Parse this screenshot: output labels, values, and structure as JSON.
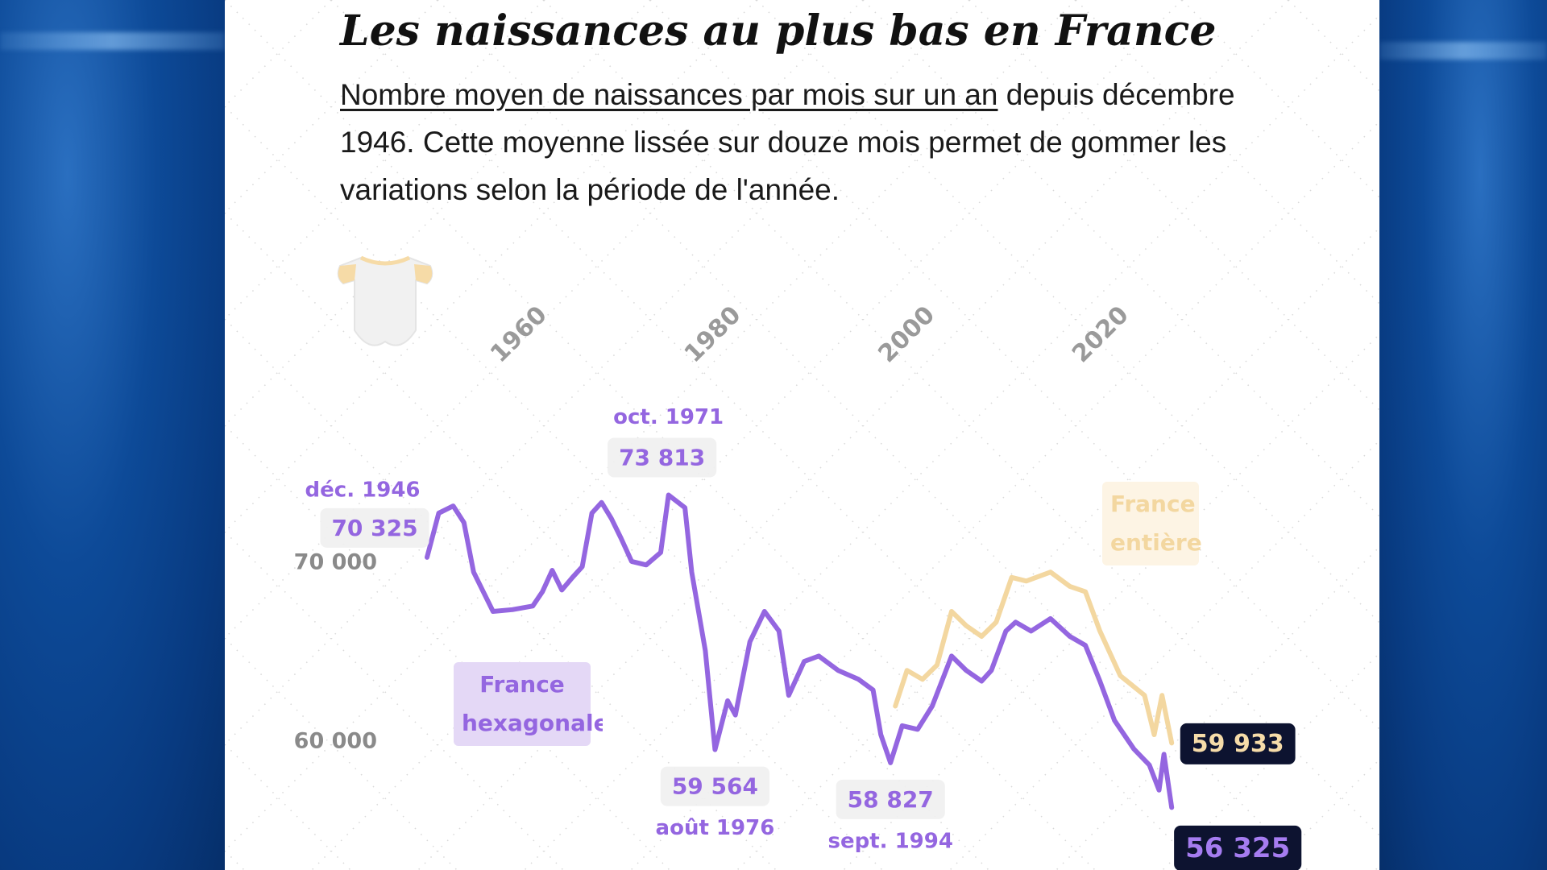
{
  "chart_data": {
    "type": "line",
    "title": "Les naissances au plus bas en France",
    "subtitle_link": "Nombre moyen de naissances par mois sur un an",
    "subtitle": "depuis décembre 1946. Cette moyenne lissée sur douze mois permet de gommer les variations selon la période de l'année.",
    "xlim": [
      1940,
      2030
    ],
    "xticks": [
      1960,
      1980,
      2000,
      2020
    ],
    "ylim": [
      54000,
      76000
    ],
    "yticks": [
      {
        "value": 60000,
        "label": "60 000"
      },
      {
        "value": 70000,
        "label": "70 000"
      }
    ],
    "series": [
      {
        "name": "France hexagonale",
        "color": "#9466e0",
        "x": [
          1946.9,
          1948.1,
          1949.6,
          1950.7,
          1951.7,
          1952.7,
          1953.7,
          1955.7,
          1957.8,
          1958.8,
          1959.8,
          1960.8,
          1961.9,
          1962.9,
          1963.9,
          1964.9,
          1965.9,
          1966.9,
          1968.0,
          1969.5,
          1971.0,
          1971.8,
          1973.5,
          1974.2,
          1975.6,
          1976.6,
          1977.9,
          1978.7,
          1980.2,
          1981.7,
          1983.2,
          1984.2,
          1985.8,
          1987.3,
          1989.3,
          1991.4,
          1992.9,
          1993.7,
          1994.7,
          1995.9,
          1997.5,
          1999.0,
          2001.0,
          2002.5,
          2004.1,
          2005.1,
          2006.6,
          2007.6,
          2009.2,
          2011.2,
          2013.2,
          2014.8,
          2016.3,
          2017.8,
          2019.8,
          2021.4,
          2022.4,
          2022.9,
          2023.7
        ],
        "values": [
          70325,
          72800,
          73200,
          72270,
          69500,
          68400,
          67300,
          67400,
          67600,
          68400,
          69600,
          68500,
          69200,
          69800,
          72800,
          73400,
          72500,
          71400,
          70100,
          69900,
          70600,
          73813,
          73100,
          69500,
          65100,
          59564,
          62300,
          61500,
          65600,
          67300,
          66200,
          62600,
          64500,
          64800,
          64000,
          63500,
          62900,
          60400,
          58827,
          60900,
          60700,
          62000,
          64800,
          64000,
          63400,
          64000,
          66200,
          66700,
          66200,
          66900,
          65900,
          65400,
          63400,
          61200,
          59600,
          58700,
          57300,
          59300,
          56325
        ]
      },
      {
        "name": "France entière",
        "color": "#f3d7a0",
        "x": [
          1995.2,
          1996.4,
          1998.0,
          1999.5,
          2001.0,
          2002.5,
          2004.1,
          2005.6,
          2007.2,
          2008.7,
          2011.2,
          2013.2,
          2014.8,
          2016.3,
          2018.4,
          2020.9,
          2021.9,
          2022.7,
          2023.7
        ],
        "values": [
          62000,
          64000,
          63500,
          64300,
          67300,
          66500,
          65900,
          66700,
          69200,
          69000,
          69500,
          68700,
          68400,
          66200,
          63700,
          62600,
          60400,
          62600,
          59933
        ]
      }
    ],
    "annotations": [
      {
        "date": "déc. 1946",
        "value": 70325,
        "label": "70 325"
      },
      {
        "date": "oct. 1971",
        "value": 73813,
        "label": "73 813"
      },
      {
        "date": "août 1976",
        "value": 59564,
        "label": "59 564"
      },
      {
        "date": "sept. 1994",
        "value": 58827,
        "label": "58 827"
      },
      {
        "value": 59933,
        "label": "59 933"
      },
      {
        "value": 56325,
        "label": "56 325"
      }
    ]
  }
}
